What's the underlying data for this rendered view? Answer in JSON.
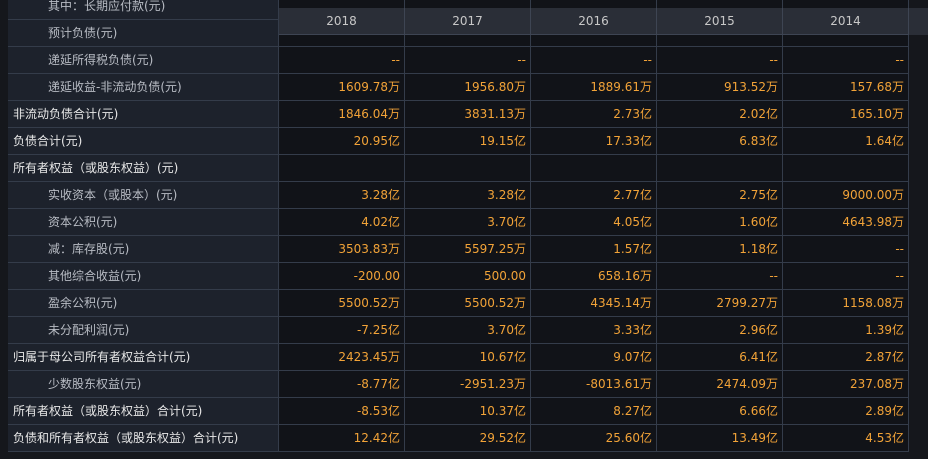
{
  "header": {
    "years": [
      "2018",
      "2017",
      "2016",
      "2015",
      "2014"
    ]
  },
  "rows": [
    {
      "label": "其中：长期应付款(元)",
      "indent": true,
      "values": []
    },
    {
      "label": "预计负债(元)",
      "indent": true,
      "values": []
    },
    {
      "label": "递延所得税负债(元)",
      "indent": true,
      "values": [
        "--",
        "--",
        "--",
        "--",
        "--"
      ]
    },
    {
      "label": "递延收益-非流动负债(元)",
      "indent": true,
      "values": [
        "1609.78万",
        "1956.80万",
        "1889.61万",
        "913.52万",
        "157.68万"
      ]
    },
    {
      "label": "非流动负债合计(元)",
      "indent": false,
      "values": [
        "1846.04万",
        "3831.13万",
        "2.73亿",
        "2.02亿",
        "165.10万"
      ]
    },
    {
      "label": "负债合计(元)",
      "indent": false,
      "values": [
        "20.95亿",
        "19.15亿",
        "17.33亿",
        "6.83亿",
        "1.64亿"
      ]
    },
    {
      "label": "所有者权益（或股东权益）(元)",
      "indent": false,
      "values": []
    },
    {
      "label": "实收资本（或股本）(元)",
      "indent": true,
      "values": [
        "3.28亿",
        "3.28亿",
        "2.77亿",
        "2.75亿",
        "9000.00万"
      ]
    },
    {
      "label": "资本公积(元)",
      "indent": true,
      "values": [
        "4.02亿",
        "3.70亿",
        "4.05亿",
        "1.60亿",
        "4643.98万"
      ]
    },
    {
      "label": "减：库存股(元)",
      "indent": true,
      "values": [
        "3503.83万",
        "5597.25万",
        "1.57亿",
        "1.18亿",
        "--"
      ]
    },
    {
      "label": "其他综合收益(元)",
      "indent": true,
      "values": [
        "-200.00",
        "500.00",
        "658.16万",
        "--",
        "--"
      ]
    },
    {
      "label": "盈余公积(元)",
      "indent": true,
      "values": [
        "5500.52万",
        "5500.52万",
        "4345.14万",
        "2799.27万",
        "1158.08万"
      ]
    },
    {
      "label": "未分配利润(元)",
      "indent": true,
      "values": [
        "-7.25亿",
        "3.70亿",
        "3.33亿",
        "2.96亿",
        "1.39亿"
      ]
    },
    {
      "label": "归属于母公司所有者权益合计(元)",
      "indent": false,
      "values": [
        "2423.45万",
        "10.67亿",
        "9.07亿",
        "6.41亿",
        "2.87亿"
      ]
    },
    {
      "label": "少数股东权益(元)",
      "indent": true,
      "values": [
        "-8.77亿",
        "-2951.23万",
        "-8013.61万",
        "2474.09万",
        "237.08万"
      ]
    },
    {
      "label": "所有者权益（或股东权益）合计(元)",
      "indent": false,
      "values": [
        "-8.53亿",
        "10.37亿",
        "8.27亿",
        "6.66亿",
        "2.89亿"
      ]
    },
    {
      "label": "负债和所有者权益（或股东权益）合计(元)",
      "indent": false,
      "values": [
        "12.42亿",
        "29.52亿",
        "25.60亿",
        "13.49亿",
        "4.53亿"
      ]
    }
  ]
}
